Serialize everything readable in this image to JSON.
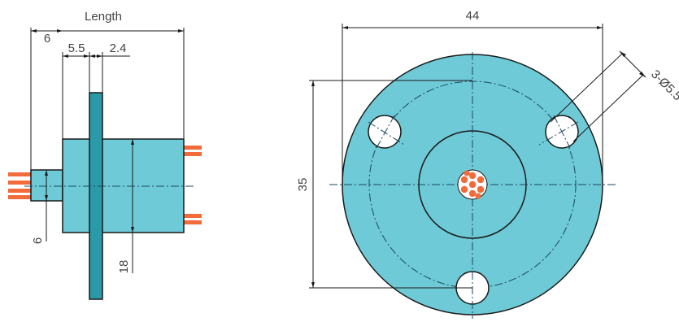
{
  "colors": {
    "body_fill": "#6ecad6",
    "flange_fill": "#2a9aa8",
    "wire": "#f26b3a",
    "outline": "#1a1a1a",
    "centerline": "#1a4a5e",
    "text": "#444444"
  },
  "side_view": {
    "length_label": "Length",
    "dim_6_top": "6",
    "dim_5_5": "5.5",
    "dim_2_4": "2.4",
    "dim_6_left": "6",
    "dim_18": "18"
  },
  "front_view": {
    "dim_44": "44",
    "dim_35": "35",
    "dim_holes": "3-Ø5.5"
  }
}
